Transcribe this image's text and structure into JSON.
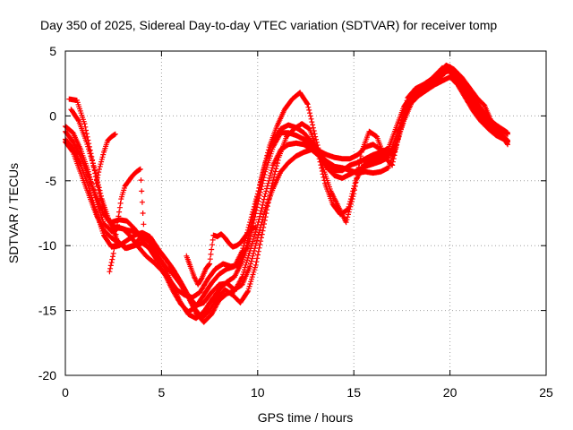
{
  "chart_data": {
    "type": "scatter",
    "title": "Day 350 of 2025, Sidereal Day-to-day VTEC variation (SDTVAR) for receiver tomp",
    "xlabel": "GPS time / hours",
    "ylabel": "SDTVAR / TECUs",
    "xlim": [
      0,
      25
    ],
    "ylim": [
      -20,
      5
    ],
    "x_ticks": [
      0,
      5,
      10,
      15,
      20,
      25
    ],
    "y_ticks": [
      5,
      0,
      -5,
      -10,
      -15,
      -20
    ],
    "x_tick_labels": [
      "0",
      "5",
      "10",
      "15",
      "20",
      "25"
    ],
    "y_tick_labels": [
      "5",
      "0",
      "-5",
      "-10",
      "-15",
      "-20"
    ],
    "grid": true,
    "marker": "+",
    "color": "#ff0000",
    "series": [
      {
        "x": [
          0.0,
          0.4,
          0.8,
          1.2,
          1.6,
          2.0,
          2.4,
          2.8,
          3.2,
          3.6,
          4.0,
          4.4,
          4.8,
          5.2,
          5.6,
          6.0,
          6.4,
          6.8,
          7.2,
          7.6,
          8.0,
          8.4,
          8.8,
          9.2,
          9.6,
          10.0,
          10.4,
          10.8,
          11.2,
          11.6,
          12.0,
          12.4,
          12.8,
          13.2,
          13.6,
          14.0,
          14.4,
          14.8,
          15.2,
          15.6,
          16.0,
          16.4,
          16.8,
          17.2,
          17.6,
          18.0,
          18.4,
          18.8,
          19.2,
          19.6,
          20.0,
          20.4,
          20.8,
          21.2,
          21.6,
          22.0,
          22.4,
          22.8,
          23.0
        ],
        "y": [
          -0.8,
          -1.3,
          -2.6,
          -4.3,
          -6.5,
          -8.3,
          -8.9,
          -8.6,
          -8.8,
          -8.9,
          -9.2,
          -9.8,
          -10.7,
          -11.8,
          -13.2,
          -14.4,
          -15.3,
          -15.6,
          -15.1,
          -14.2,
          -13.4,
          -12.8,
          -12.4,
          -11.2,
          -9.5,
          -6.8,
          -4.3,
          -2.4,
          -1.3,
          -1.3,
          -1.5,
          -1.8,
          -2.2,
          -2.8,
          -3.6,
          -4.2,
          -4.2,
          -3.8,
          -3.6,
          -3.3,
          -3.0,
          -2.8,
          -2.5,
          -0.9,
          0.7,
          1.6,
          2.0,
          2.4,
          2.9,
          3.3,
          3.5,
          2.7,
          1.8,
          0.9,
          0.2,
          -0.4,
          -0.9,
          -1.2,
          -1.4
        ]
      },
      {
        "x": [
          0.0,
          0.4,
          0.8,
          1.2,
          1.6,
          2.0,
          2.4,
          2.8,
          3.2,
          3.6,
          4.0,
          4.4,
          4.8,
          5.2,
          5.6,
          6.0,
          6.4,
          6.8,
          7.2,
          7.6,
          8.0,
          8.4,
          8.8,
          9.2,
          9.6,
          10.0,
          10.4,
          10.8,
          11.2,
          11.6,
          12.0,
          12.4,
          12.8,
          13.2,
          13.6,
          14.0,
          14.4,
          14.8,
          15.2,
          15.6,
          16.0,
          16.4,
          16.8,
          17.2,
          17.6,
          18.0,
          18.4,
          18.8,
          19.2,
          19.6,
          20.0,
          20.4,
          20.8,
          21.2,
          21.6,
          22.0,
          22.4,
          22.8,
          23.0
        ],
        "y": [
          -1.8,
          -2.5,
          -3.8,
          -5.4,
          -7.4,
          -9.2,
          -10.1,
          -10.0,
          -9.6,
          -9.2,
          -9.0,
          -9.3,
          -10.2,
          -11.0,
          -11.8,
          -12.8,
          -13.9,
          -14.6,
          -14.4,
          -13.6,
          -13.0,
          -12.9,
          -13.4,
          -13.0,
          -11.6,
          -9.4,
          -7.2,
          -5.6,
          -4.3,
          -3.6,
          -3.1,
          -2.8,
          -2.6,
          -2.7,
          -3.0,
          -3.2,
          -3.3,
          -3.3,
          -3.0,
          -2.4,
          -2.2,
          -2.6,
          -2.9,
          -2.2,
          -0.4,
          1.0,
          1.6,
          2.0,
          2.4,
          2.7,
          3.0,
          2.4,
          1.4,
          0.4,
          -0.4,
          -1.0,
          -1.5,
          -1.8,
          -2.0
        ]
      },
      {
        "x": [
          0.0,
          0.4,
          0.8,
          1.2,
          1.6,
          2.0,
          2.4,
          2.8,
          3.2,
          3.6,
          4.0,
          4.4,
          4.8,
          5.2,
          5.6,
          6.0,
          6.4,
          6.8,
          7.2,
          7.6,
          8.0,
          8.4,
          8.8,
          9.2,
          9.6,
          10.0,
          10.4,
          10.8,
          11.2,
          11.6,
          12.0,
          12.4,
          12.8,
          13.2,
          13.6,
          14.0,
          14.4,
          14.8,
          15.2,
          15.6,
          16.0,
          16.4,
          16.8,
          17.2,
          17.6,
          18.0,
          18.4,
          18.8,
          19.2,
          19.6,
          20.0,
          20.4,
          20.8,
          21.2,
          21.6,
          22.0,
          22.4,
          22.8,
          23.0
        ],
        "y": [
          -1.2,
          -2.0,
          -3.1,
          -4.6,
          -6.2,
          -7.6,
          -8.2,
          -8.0,
          -8.1,
          -8.7,
          -9.6,
          -10.3,
          -11.2,
          -12.3,
          -13.5,
          -14.5,
          -15.1,
          -14.7,
          -13.8,
          -12.9,
          -12.2,
          -11.8,
          -11.6,
          -10.4,
          -8.2,
          -6.0,
          -3.6,
          -2.0,
          -1.0,
          -0.7,
          -0.9,
          -1.3,
          -2.0,
          -3.0,
          -4.0,
          -4.6,
          -4.8,
          -4.5,
          -4.2,
          -3.9,
          -3.7,
          -3.5,
          -3.2,
          -1.6,
          0.2,
          1.2,
          1.7,
          2.1,
          2.6,
          3.1,
          3.8,
          3.2,
          2.2,
          1.2,
          0.4,
          -0.2,
          -0.7,
          -1.1,
          -1.3
        ]
      },
      {
        "x": [
          0.0,
          0.4,
          0.8,
          1.2,
          1.6,
          2.0,
          2.4,
          2.8,
          3.2,
          3.6,
          4.0,
          4.4,
          4.8,
          5.2,
          5.6,
          6.0,
          6.4,
          6.8,
          7.2,
          7.6,
          8.0,
          8.4,
          8.8,
          9.2,
          9.6,
          10.0,
          10.4,
          10.8,
          11.2,
          11.6,
          12.0,
          12.4,
          12.8,
          13.2,
          13.6,
          14.0,
          14.4,
          14.8,
          15.2,
          15.6,
          16.0,
          16.4,
          16.8,
          17.2,
          17.6,
          18.0,
          18.4,
          18.8,
          19.2,
          19.6,
          20.0,
          20.4,
          20.8,
          21.2,
          21.6,
          22.0,
          22.4,
          22.8,
          23.0
        ],
        "y": [
          -2.0,
          -2.8,
          -4.4,
          -6.0,
          -7.6,
          -8.8,
          -9.4,
          -9.8,
          -10.2,
          -10.0,
          -9.8,
          -10.2,
          -10.8,
          -11.6,
          -12.2,
          -13.0,
          -14.0,
          -15.2,
          -15.9,
          -15.3,
          -14.2,
          -13.7,
          -13.5,
          -12.4,
          -10.4,
          -8.4,
          -6.0,
          -3.8,
          -2.6,
          -2.2,
          -2.1,
          -2.2,
          -2.6,
          -3.1,
          -3.5,
          -3.9,
          -4.0,
          -4.2,
          -4.4,
          -4.3,
          -4.4,
          -4.3,
          -4.0,
          -2.4,
          -0.2,
          1.4,
          2.1,
          2.5,
          3.1,
          3.7,
          3.4,
          2.6,
          1.5,
          0.6,
          -0.1,
          -0.7,
          -1.2,
          -1.6,
          -1.9
        ]
      },
      {
        "x": [
          0.2,
          0.6,
          1.0,
          1.4,
          1.8,
          2.2,
          2.6,
          3.0,
          3.4,
          3.8,
          4.2,
          4.6,
          5.0,
          5.4,
          5.8,
          6.2,
          6.6,
          7.0,
          7.4,
          7.8,
          8.2,
          8.6,
          9.0,
          9.4,
          9.8,
          10.2,
          10.6,
          11.0,
          11.4,
          11.8,
          12.2,
          12.6,
          13.0,
          13.4,
          13.8,
          14.2,
          14.6,
          15.0,
          15.4,
          15.8,
          16.2,
          16.6,
          17.0,
          17.4,
          17.8,
          18.2,
          18.6,
          19.0,
          19.4,
          19.8,
          20.2,
          20.6,
          21.0,
          21.4,
          21.8,
          22.2,
          22.6,
          22.9
        ],
        "y": [
          1.3,
          1.2,
          -0.6,
          -3.4,
          -6.2,
          -8.0,
          -8.6,
          -8.7,
          -9.3,
          -10.1,
          -10.8,
          -11.3,
          -11.9,
          -12.6,
          -13.4,
          -13.8,
          -14.0,
          -13.6,
          -12.6,
          -11.8,
          -11.4,
          -11.6,
          -11.5,
          -10.2,
          -7.5,
          -4.8,
          -2.4,
          -0.8,
          0.5,
          1.3,
          1.8,
          0.9,
          -1.6,
          -4.0,
          -5.8,
          -7.0,
          -8.2,
          -6.0,
          -2.8,
          -1.2,
          -1.6,
          -3.2,
          -3.8,
          -1.0,
          1.4,
          2.1,
          2.4,
          2.8,
          3.3,
          3.9,
          3.6,
          3.0,
          2.2,
          1.4,
          0.8,
          -0.6,
          -1.4,
          -1.8
        ]
      },
      {
        "x": [
          0.3,
          0.7,
          1.1,
          1.5,
          1.9,
          2.3,
          2.7,
          3.1,
          3.5,
          3.9,
          4.3,
          4.7,
          5.1,
          5.5,
          5.9,
          6.3,
          6.7,
          7.1,
          7.5,
          7.9,
          8.3,
          8.7,
          9.1,
          9.5,
          9.9,
          10.3,
          10.7,
          11.1,
          11.5,
          11.9,
          12.3,
          12.7,
          13.1,
          13.5,
          13.9,
          14.3,
          14.7,
          15.1,
          15.5,
          15.9,
          16.3,
          16.7,
          17.1,
          17.5,
          17.9,
          18.3,
          18.7,
          19.1,
          19.5,
          19.9,
          20.3,
          20.7,
          21.1,
          21.5,
          21.9,
          22.3,
          22.7,
          23.0
        ],
        "y": [
          0.5,
          -0.4,
          -2.0,
          -4.0,
          -6.4,
          -8.2,
          -9.6,
          -10.2,
          -10.0,
          -9.4,
          -9.5,
          -10.1,
          -10.8,
          -11.6,
          -12.6,
          -13.6,
          -14.8,
          -15.6,
          -15.0,
          -14.0,
          -13.4,
          -13.8,
          -14.4,
          -13.5,
          -11.5,
          -8.6,
          -5.6,
          -3.2,
          -1.6,
          -1.0,
          -0.6,
          -1.0,
          -2.6,
          -5.2,
          -6.8,
          -7.6,
          -7.2,
          -5.0,
          -3.8,
          -3.4,
          -3.2,
          -3.0,
          -2.8,
          -0.6,
          1.0,
          1.8,
          2.3,
          2.7,
          3.2,
          3.6,
          3.2,
          2.4,
          1.6,
          0.8,
          0.0,
          -0.8,
          -1.5,
          -2.2
        ]
      },
      {
        "x": [
          2.3,
          2.5,
          2.7,
          2.9,
          3.1,
          3.3,
          3.5,
          3.7,
          3.9,
          4.1,
          4.3,
          4.5
        ],
        "y": [
          -12.0,
          -10.6,
          -8.4,
          -6.4,
          -5.4,
          -5.0,
          -4.6,
          -4.3,
          -4.1,
          -9.2,
          -9.6,
          -9.9
        ]
      },
      {
        "x": [
          1.6,
          1.8,
          2.0,
          2.2,
          2.4,
          2.6
        ],
        "y": [
          -5.2,
          -3.9,
          -2.8,
          -1.9,
          -1.6,
          -1.4
        ]
      },
      {
        "x": [
          6.3,
          6.5,
          6.7,
          6.9,
          7.1,
          7.3,
          7.5,
          7.7,
          7.9,
          8.1,
          8.3,
          8.5,
          8.7,
          8.9,
          9.1,
          9.3,
          9.5,
          9.7,
          9.9
        ],
        "y": [
          -10.8,
          -11.6,
          -12.4,
          -13.0,
          -12.5,
          -11.8,
          -11.4,
          -9.2,
          -9.3,
          -9.1,
          -9.4,
          -9.8,
          -10.1,
          -10.0,
          -9.8,
          -9.4,
          -9.0,
          -8.7,
          -8.6
        ]
      }
    ]
  }
}
